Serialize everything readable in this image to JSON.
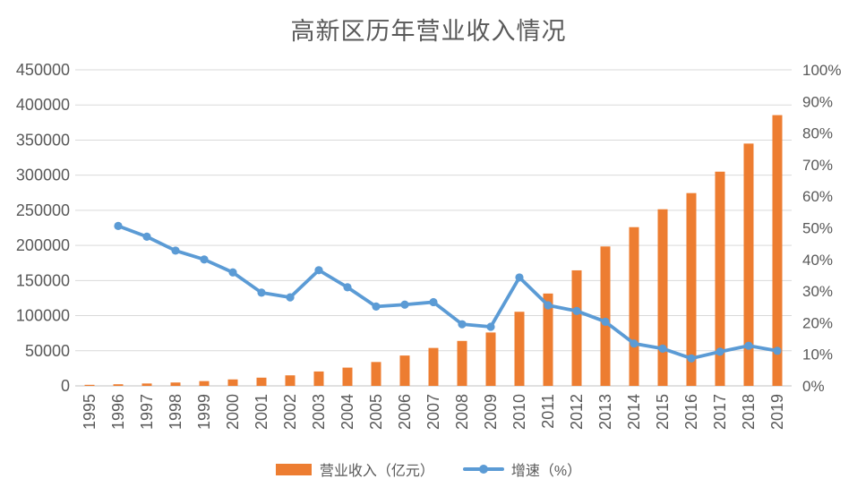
{
  "chart_data": {
    "type": "combo",
    "title": "高新区历年营业收入情况",
    "categories": [
      "1995",
      "1996",
      "1997",
      "1998",
      "1999",
      "2000",
      "2001",
      "2002",
      "2003",
      "2004",
      "2005",
      "2006",
      "2007",
      "2008",
      "2009",
      "2010",
      "2011",
      "2012",
      "2013",
      "2014",
      "2015",
      "2016",
      "2017",
      "2018",
      "2019"
    ],
    "series": [
      {
        "name": "营业收入（亿元）",
        "type": "bar",
        "axis": "left",
        "color": "#ED7D31",
        "values": [
          1500,
          2300,
          3400,
          4800,
          6800,
          9200,
          11700,
          15000,
          20500,
          26000,
          34000,
          43200,
          54000,
          64000,
          76000,
          105500,
          131500,
          164500,
          198500,
          226000,
          251500,
          274500,
          305000,
          345000,
          385500
        ]
      },
      {
        "name": "增速（%）",
        "type": "line",
        "axis": "right",
        "color": "#5B9BD5",
        "marker": "circle",
        "values": [
          null,
          50.6,
          47.2,
          42.8,
          40.0,
          35.9,
          29.5,
          28.0,
          36.6,
          31.2,
          25.1,
          25.7,
          26.5,
          19.5,
          18.7,
          34.3,
          25.5,
          23.7,
          20.3,
          13.4,
          11.8,
          8.7,
          10.8,
          12.7,
          11.1
        ]
      }
    ],
    "left_axis": {
      "min": 0,
      "max": 450000,
      "step": 50000,
      "tick_labels": [
        "0",
        "50000",
        "100000",
        "150000",
        "200000",
        "250000",
        "300000",
        "350000",
        "400000",
        "450000"
      ]
    },
    "right_axis": {
      "min": 0,
      "max": 100,
      "step": 10,
      "tick_labels": [
        "0%",
        "10%",
        "20%",
        "30%",
        "40%",
        "50%",
        "60%",
        "70%",
        "80%",
        "90%",
        "100%"
      ]
    },
    "xlabel": "",
    "ylabel": "",
    "grid": true,
    "legend_position": "bottom",
    "colors": {
      "text": "#595959",
      "grid": "#D9D9D9",
      "axis_line": "#C0C0C0",
      "background": "#FFFFFF"
    }
  }
}
